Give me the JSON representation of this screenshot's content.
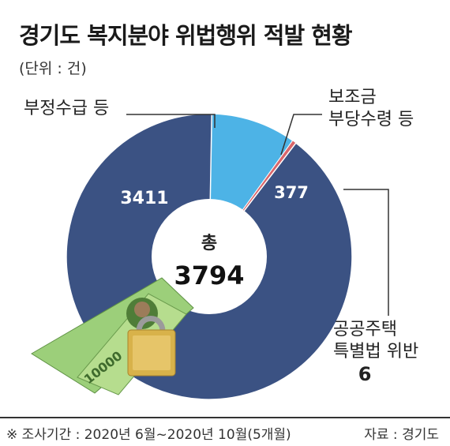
{
  "title": "경기도 복지분야 위법행위 적발 현황",
  "unit": "(단위 : 건)",
  "chart_data": {
    "type": "pie",
    "title": "경기도 복지분야 위법행위 적발 현황",
    "unit": "(단위 : 건)",
    "center_label": "총",
    "total": "3794",
    "series": [
      {
        "category": "부정수급 등",
        "value": 3411,
        "value_label": "3411",
        "color": "#3b5283"
      },
      {
        "category": "보조금 부당수령 등",
        "value": 377,
        "value_label": "377",
        "color": "#4db3e6"
      },
      {
        "category": "공공주택 특별법 위반",
        "value": 6,
        "value_label": "6",
        "color": "#d9666b"
      }
    ]
  },
  "callouts": {
    "c1": "부정수급 등",
    "c2_line1": "보조금",
    "c2_line2": "부당수령 등",
    "c3_line1": "공공주택",
    "c3_line2": "특별법 위반"
  },
  "footer": {
    "note": "※ 조사기간 : 2020년 6월~2020년 10월(5개월)",
    "source": "자료 : 경기도"
  }
}
